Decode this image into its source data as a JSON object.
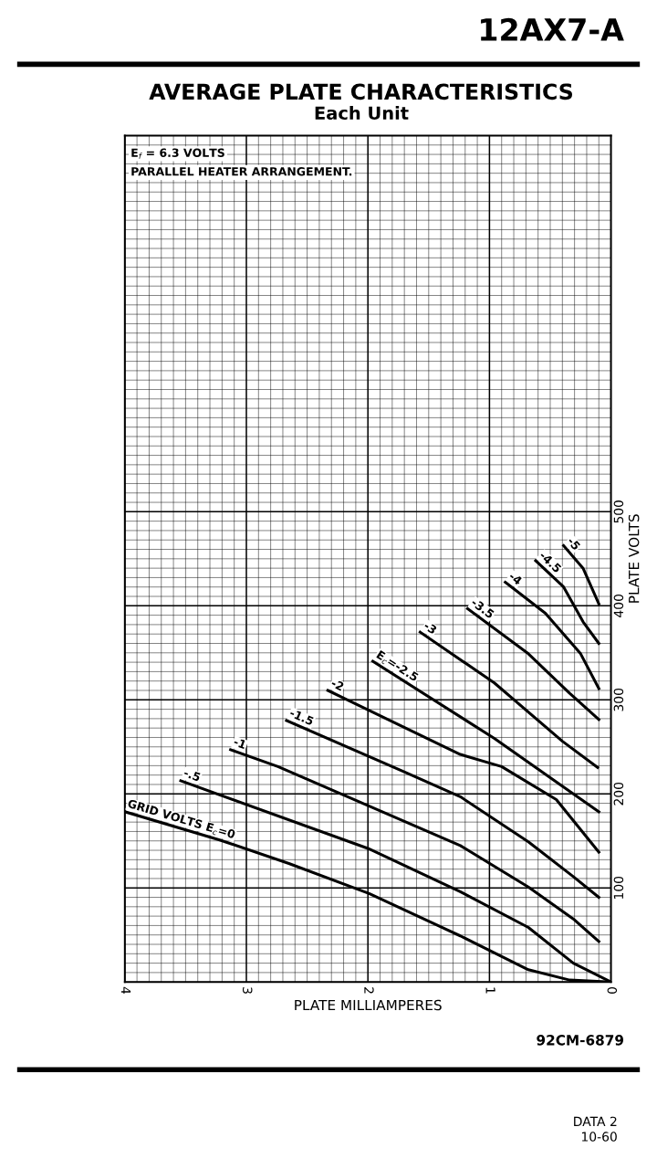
{
  "chart_data": {
    "type": "line",
    "title": "AVERAGE PLATE CHARACTERISTICS",
    "subtitle": "Each Unit",
    "xlabel": "PLATE MILLIAMPERES",
    "ylabel": "PLATE VOLTS",
    "annotations": [
      "12AX7-A",
      "E$_{f}$ = 6.3 VOLTS",
      "PARALLEL HEATER ARRANGEMENT.",
      "92CM-6879",
      "DATA 2",
      "10-60"
    ],
    "xlim": [
      4,
      0
    ],
    "xticks": [
      4,
      3,
      2,
      1,
      0
    ],
    "ylim": [
      0,
      900
    ],
    "yticks": [
      100,
      200,
      300,
      400,
      500
    ],
    "grid": true,
    "legend": false,
    "marker": "none",
    "line_style": "solid",
    "series": [
      {
        "name": "GRID VOLTS E$_{c}$=0",
        "color": "#000000",
        "x": [
          4.0,
          3.22,
          2.65,
          1.99,
          1.24,
          0.68,
          0.34,
          0
        ],
        "values": [
          181,
          151,
          126,
          94,
          49,
          13,
          2,
          0
        ]
      },
      {
        "name": "-.5",
        "color": "#000000",
        "x": [
          3.54,
          2.0,
          1.24,
          0.68,
          0.31,
          0
        ],
        "values": [
          214,
          142,
          96,
          58,
          20,
          0
        ]
      },
      {
        "name": "-1",
        "color": "#000000",
        "x": [
          3.13,
          2.74,
          1.99,
          1.24,
          0.68,
          0.31,
          0.1
        ],
        "values": [
          247,
          229,
          187,
          145,
          101,
          67,
          43
        ]
      },
      {
        "name": "-1.5",
        "color": "#000000",
        "x": [
          2.67,
          1.71,
          1.24,
          0.68,
          0.31,
          0.1
        ],
        "values": [
          278,
          224,
          197,
          149,
          112,
          90
        ]
      },
      {
        "name": "-2",
        "color": "#000000",
        "x": [
          2.33,
          1.24,
          0.9,
          0.45,
          0.1
        ],
        "values": [
          310,
          242,
          229,
          194,
          138
        ]
      },
      {
        "name": "E$_{c}$=-2.5",
        "color": "#000000",
        "x": [
          1.96,
          0.96,
          0.42,
          0.1
        ],
        "values": [
          341,
          259,
          210,
          181
        ]
      },
      {
        "name": "-3",
        "color": "#000000",
        "x": [
          1.57,
          0.96,
          0.4,
          0.11
        ],
        "values": [
          372,
          318,
          256,
          228
        ]
      },
      {
        "name": "-3.5",
        "color": "#000000",
        "x": [
          1.18,
          0.68,
          0.34,
          0.1
        ],
        "values": [
          397,
          349,
          307,
          279
        ]
      },
      {
        "name": "-4",
        "color": "#000000",
        "x": [
          0.87,
          0.54,
          0.25,
          0.1
        ],
        "values": [
          425,
          392,
          349,
          312
        ]
      },
      {
        "name": "-4.5",
        "color": "#000000",
        "x": [
          0.62,
          0.39,
          0.23,
          0.1
        ],
        "values": [
          448,
          420,
          383,
          360
        ]
      },
      {
        "name": "-5",
        "color": "#000000",
        "x": [
          0.39,
          0.23,
          0.1
        ],
        "values": [
          464,
          440,
          402
        ]
      }
    ]
  }
}
